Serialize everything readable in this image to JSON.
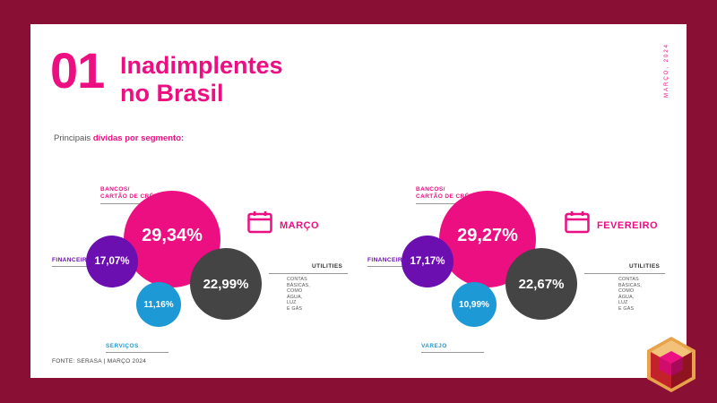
{
  "header": {
    "number": "01",
    "title_line1": "Inadimplentes",
    "title_line2": "no Brasil",
    "date_vertical": "MARÇO, 2024"
  },
  "subtitle": {
    "prefix": "Principais ",
    "highlight": "dívidas por segmento:"
  },
  "footer": "FONTE: SERASA | MARÇO 2024",
  "colors": {
    "background": "#8a0f35",
    "pink": "#ec0f82",
    "purple": "#6b0fb0",
    "dark": "#444444",
    "blue": "#1d9ad6"
  },
  "groups": [
    {
      "month": "MARÇO",
      "banks_label_1": "BANCOS/",
      "banks_label_2": "CARTÃO DE CRÉDITO",
      "banks_value": "29,34%",
      "fin_label": "FINANCEIRAS",
      "fin_value": "17,07%",
      "util_label": "UTILITIES",
      "util_desc_1": "CONTAS BÁSICAS,",
      "util_desc_2": "COMO  ÁGUA, LUZ",
      "util_desc_3": "E GÁS",
      "util_value": "22,99%",
      "small_label": "SERVIÇOS",
      "small_value": "11,16%"
    },
    {
      "month": "FEVEREIRO",
      "banks_label_1": "BANCOS/",
      "banks_label_2": "CARTÃO DE CRÉDITO",
      "banks_value": "29,27%",
      "fin_label": "FINANCEIRAS",
      "fin_value": "17,17%",
      "util_label": "UTILITIES",
      "util_desc_1": "CONTAS BÁSICAS,",
      "util_desc_2": "COMO  ÁGUA, LUZ",
      "util_desc_3": "E GÁS",
      "util_value": "22,67%",
      "small_label": "VAREJO",
      "small_value": "10,99%"
    }
  ]
}
